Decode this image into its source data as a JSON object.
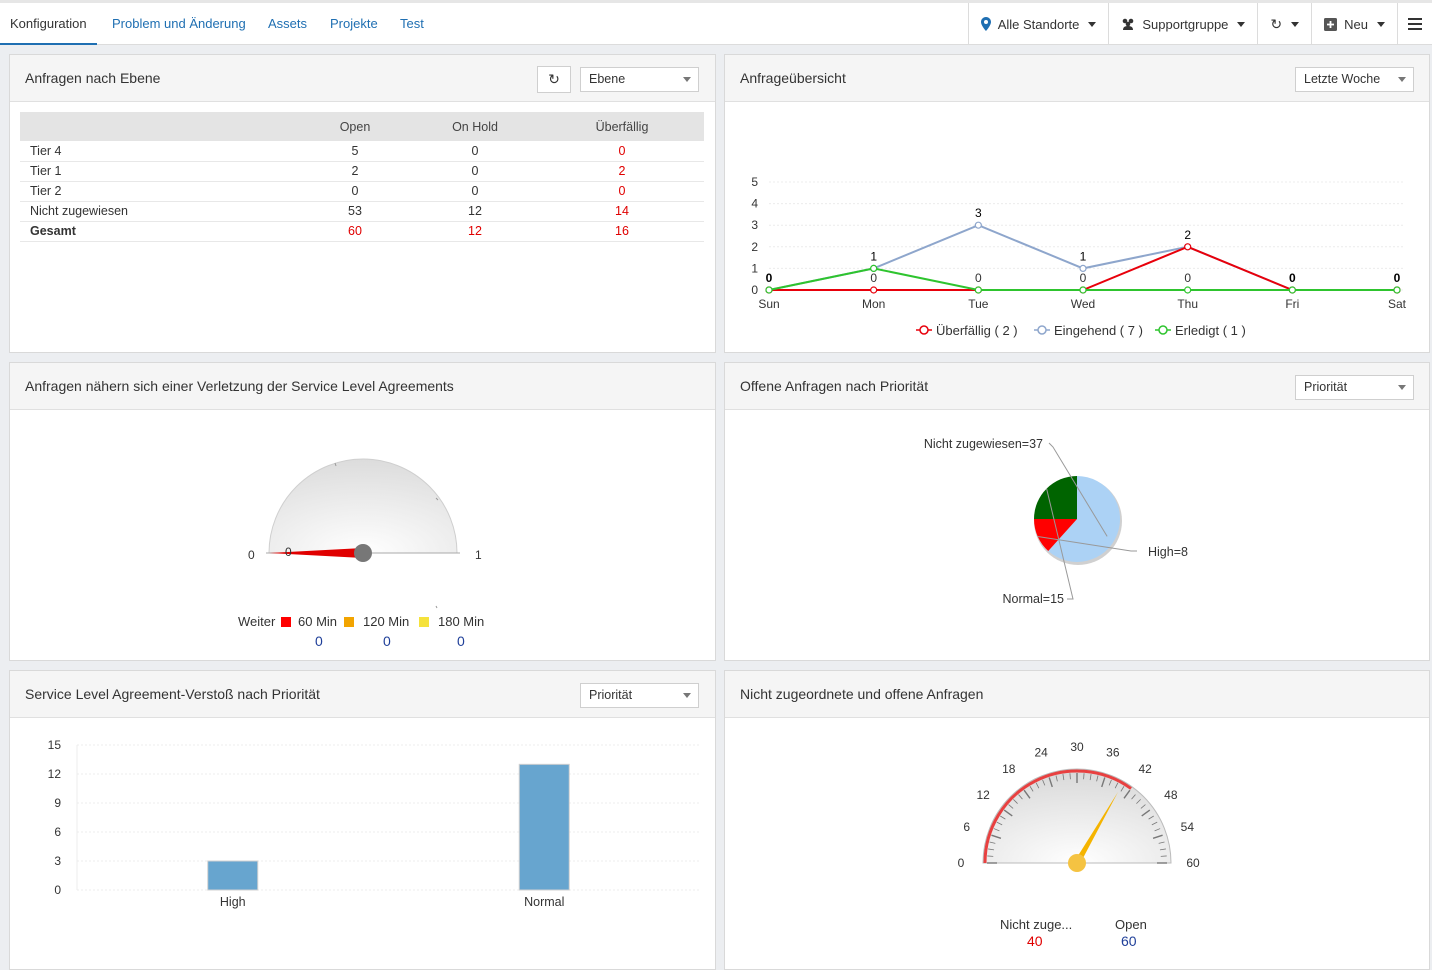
{
  "nav": {
    "tabs": [
      {
        "label": "Konfiguration"
      },
      {
        "label": "Problem und Änderung"
      },
      {
        "label": "Assets"
      },
      {
        "label": "Projekte"
      },
      {
        "label": "Test"
      }
    ],
    "tools": {
      "location": "Alle Standorte",
      "group": "Supportgruppe",
      "new": "Neu"
    }
  },
  "panels": {
    "level": {
      "title": "Anfragen nach Ebene",
      "select": "Ebene",
      "columns": [
        "",
        "Open",
        "On Hold",
        "Überfällig"
      ],
      "rows": [
        {
          "label": "Tier 4",
          "open": "5",
          "hold": "0",
          "overdue": "0"
        },
        {
          "label": "Tier 1",
          "open": "2",
          "hold": "0",
          "overdue": "2"
        },
        {
          "label": "Tier 2",
          "open": "0",
          "hold": "0",
          "overdue": "0"
        },
        {
          "label": "Nicht zugewiesen",
          "open": "53",
          "hold": "12",
          "overdue": "14"
        },
        {
          "label": "Gesamt",
          "open": "60",
          "hold": "12",
          "overdue": "16"
        }
      ]
    },
    "overview": {
      "title": "Anfrageübersicht",
      "select": "Letzte Woche"
    },
    "sla_near": {
      "title": "Anfragen nähern sich einer Verletzung der Service Level Agreements",
      "gauge_min": "0",
      "gauge_max": "1",
      "gauge_value": "0",
      "legend": {
        "label": "Weiter",
        "items": [
          "60 Min",
          "120 Min",
          "180 Min"
        ],
        "counts": [
          "0",
          "0",
          "0"
        ]
      }
    },
    "priority": {
      "title": "Offene Anfragen nach Priorität",
      "select": "Priorität"
    },
    "sla_breach": {
      "title": "Service Level Agreement-Verstoß nach Priorität",
      "select": "Priorität"
    },
    "unassigned": {
      "title": "Nicht zugeordnete und offene Anfragen",
      "ticks": [
        "0",
        "6",
        "12",
        "18",
        "24",
        "30",
        "36",
        "42",
        "48",
        "54",
        "60"
      ],
      "labels": [
        "Nicht zuge...",
        "Open"
      ],
      "values": [
        "40",
        "60"
      ]
    }
  },
  "chart_data": [
    {
      "type": "line",
      "categories": [
        "Sun",
        "Mon",
        "Tue",
        "Wed",
        "Thu",
        "Fri",
        "Sat"
      ],
      "ylim": [
        0,
        5
      ],
      "yticks": [
        "0",
        "1",
        "2",
        "3",
        "4",
        "5"
      ],
      "series": [
        {
          "name": "Überfällig ( 2 )",
          "color": "#e8000b",
          "values": [
            0,
            0,
            0,
            0,
            2,
            0,
            0
          ]
        },
        {
          "name": "Eingehend ( 7 )",
          "color": "#8ea6cc",
          "values": [
            0,
            1,
            3,
            1,
            2,
            0,
            0
          ]
        },
        {
          "name": "Erledigt ( 1 )",
          "color": "#2ec42e",
          "values": [
            0,
            1,
            0,
            0,
            0,
            0,
            0
          ]
        }
      ],
      "labels": [
        "0",
        "1",
        "3",
        "1",
        "2",
        "0",
        "0"
      ],
      "labels2": [
        "0",
        "0",
        "0",
        "0",
        "0",
        "0",
        "0"
      ]
    },
    {
      "type": "pie",
      "slices": [
        {
          "label": "Nicht zugewiesen=37",
          "value": 37,
          "color": "#acd2f5"
        },
        {
          "label": "High=8",
          "value": 8,
          "color": "#ff0000"
        },
        {
          "label": "Normal=15",
          "value": 15,
          "color": "#006400"
        }
      ]
    },
    {
      "type": "bar",
      "categories": [
        "High",
        "Normal"
      ],
      "values": [
        3,
        13
      ],
      "ylim": [
        0,
        15
      ],
      "yticks": [
        "0",
        "3",
        "6",
        "9",
        "12",
        "15"
      ],
      "color": "#67a5cf"
    }
  ]
}
